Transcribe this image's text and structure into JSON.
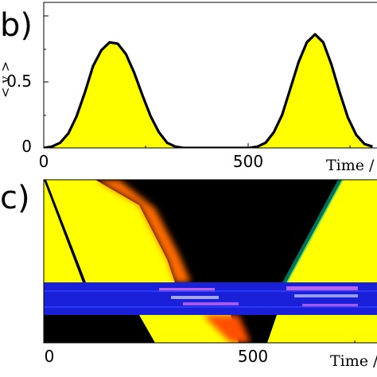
{
  "chart_data": [
    {
      "panel": "b)",
      "type": "area",
      "xlabel": "Time /",
      "ylabel": "< v >",
      "xlim": [
        0,
        810
      ],
      "ylim": [
        0,
        1
      ],
      "xticks": [
        "0",
        "500"
      ],
      "yticks": [
        "0",
        "0.5"
      ],
      "fill_color": "#ffff00",
      "line_color": "#000000",
      "series": [
        {
          "x": [
            0,
            20,
            40,
            60,
            80,
            100,
            120,
            140,
            160,
            180,
            200,
            220,
            240,
            260,
            280,
            300,
            320,
            340,
            360,
            380,
            400,
            420,
            440,
            460,
            480,
            500,
            520,
            540,
            560,
            580,
            600,
            620,
            640,
            660,
            680,
            700,
            720,
            740,
            760,
            780,
            800
          ],
          "values": [
            0,
            0.01,
            0.04,
            0.11,
            0.24,
            0.42,
            0.62,
            0.74,
            0.8,
            0.79,
            0.71,
            0.57,
            0.4,
            0.24,
            0.12,
            0.04,
            0.01,
            0,
            0,
            0,
            0,
            0,
            0,
            0,
            0,
            0,
            0.01,
            0.04,
            0.12,
            0.25,
            0.45,
            0.65,
            0.8,
            0.86,
            0.8,
            0.63,
            0.42,
            0.23,
            0.1,
            0.03,
            0.01
          ]
        }
      ]
    },
    {
      "panel": "c)",
      "type": "heatmap",
      "xlabel": "Time /",
      "xlim": [
        0,
        810
      ],
      "xticks": [
        "0",
        "500"
      ],
      "colormap": [
        "#000000",
        "#b00000",
        "#ff3000",
        "#ffa000",
        "#ffff00"
      ],
      "inset_color": "#1a20d8"
    }
  ]
}
